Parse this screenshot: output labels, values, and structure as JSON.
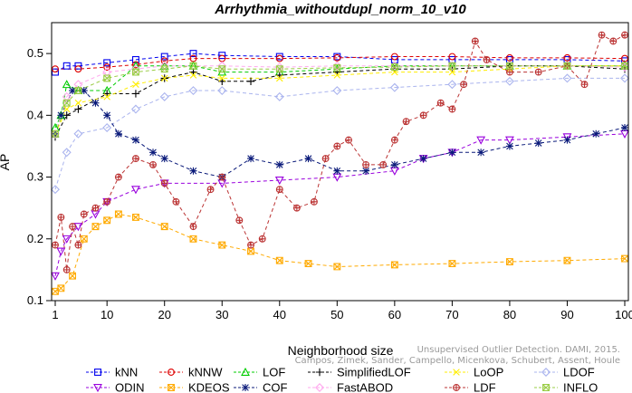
{
  "chart_data": {
    "type": "line",
    "title": "Arrhythmia_withoutdupl_norm_10_v10",
    "xlabel": "Neighborhood size",
    "ylabel": "AP",
    "xlim": [
      1,
      100
    ],
    "ylim": [
      0.1,
      0.55
    ],
    "xticks": [
      1,
      10,
      20,
      30,
      40,
      50,
      60,
      70,
      80,
      90,
      100
    ],
    "yticks": [
      0.1,
      0.2,
      0.3,
      0.4,
      0.5
    ],
    "ytick_labels": [
      "0.1",
      "0.2",
      "0.3",
      "0.4",
      "0.5"
    ],
    "grid": false,
    "legend_position": "bottom",
    "series": [
      {
        "name": "kNN",
        "color": "#0000ee",
        "marker": "square",
        "dash": "4,3",
        "points": [
          [
            1,
            0.47
          ],
          [
            3,
            0.48
          ],
          [
            5,
            0.48
          ],
          [
            10,
            0.485
          ],
          [
            15,
            0.49
          ],
          [
            20,
            0.495
          ],
          [
            25,
            0.5
          ],
          [
            30,
            0.497
          ],
          [
            40,
            0.495
          ],
          [
            50,
            0.495
          ],
          [
            60,
            0.49
          ],
          [
            70,
            0.49
          ],
          [
            80,
            0.49
          ],
          [
            90,
            0.49
          ],
          [
            100,
            0.488
          ]
        ]
      },
      {
        "name": "kNNW",
        "color": "#dd0000",
        "marker": "circle",
        "dash": "4,3",
        "points": [
          [
            1,
            0.475
          ],
          [
            5,
            0.475
          ],
          [
            10,
            0.478
          ],
          [
            15,
            0.482
          ],
          [
            20,
            0.488
          ],
          [
            25,
            0.492
          ],
          [
            30,
            0.492
          ],
          [
            40,
            0.492
          ],
          [
            50,
            0.493
          ],
          [
            60,
            0.495
          ],
          [
            70,
            0.495
          ],
          [
            80,
            0.493
          ],
          [
            90,
            0.493
          ],
          [
            100,
            0.492
          ]
        ]
      },
      {
        "name": "LOF",
        "color": "#00cc00",
        "marker": "triangle",
        "dash": "4,3",
        "points": [
          [
            1,
            0.38
          ],
          [
            2,
            0.4
          ],
          [
            3,
            0.45
          ],
          [
            5,
            0.44
          ],
          [
            10,
            0.44
          ],
          [
            15,
            0.48
          ],
          [
            20,
            0.48
          ],
          [
            25,
            0.48
          ],
          [
            30,
            0.47
          ],
          [
            40,
            0.47
          ],
          [
            50,
            0.475
          ],
          [
            60,
            0.48
          ],
          [
            70,
            0.48
          ],
          [
            80,
            0.48
          ],
          [
            90,
            0.48
          ],
          [
            100,
            0.48
          ]
        ]
      },
      {
        "name": "SimplifiedLOF",
        "color": "#000000",
        "marker": "plus",
        "dash": "4,3",
        "points": [
          [
            1,
            0.365
          ],
          [
            3,
            0.4
          ],
          [
            5,
            0.41
          ],
          [
            10,
            0.435
          ],
          [
            15,
            0.435
          ],
          [
            20,
            0.46
          ],
          [
            25,
            0.47
          ],
          [
            30,
            0.455
          ],
          [
            35,
            0.455
          ],
          [
            40,
            0.465
          ],
          [
            50,
            0.47
          ],
          [
            60,
            0.475
          ],
          [
            70,
            0.475
          ],
          [
            80,
            0.48
          ],
          [
            90,
            0.48
          ],
          [
            100,
            0.475
          ]
        ]
      },
      {
        "name": "LoOP",
        "color": "#ffee00",
        "marker": "x",
        "dash": "4,3",
        "points": [
          [
            1,
            0.37
          ],
          [
            3,
            0.41
          ],
          [
            5,
            0.42
          ],
          [
            10,
            0.43
          ],
          [
            15,
            0.45
          ],
          [
            20,
            0.46
          ],
          [
            25,
            0.465
          ],
          [
            30,
            0.46
          ],
          [
            40,
            0.46
          ],
          [
            50,
            0.465
          ],
          [
            60,
            0.47
          ],
          [
            70,
            0.47
          ],
          [
            80,
            0.475
          ],
          [
            90,
            0.48
          ],
          [
            100,
            0.48
          ]
        ]
      },
      {
        "name": "LDOF",
        "color": "#aab4ee",
        "marker": "diamond",
        "dash": "4,3",
        "points": [
          [
            1,
            0.28
          ],
          [
            3,
            0.34
          ],
          [
            5,
            0.37
          ],
          [
            10,
            0.38
          ],
          [
            15,
            0.41
          ],
          [
            20,
            0.43
          ],
          [
            25,
            0.44
          ],
          [
            30,
            0.44
          ],
          [
            40,
            0.43
          ],
          [
            50,
            0.44
          ],
          [
            60,
            0.445
          ],
          [
            70,
            0.45
          ],
          [
            80,
            0.455
          ],
          [
            90,
            0.46
          ],
          [
            100,
            0.46
          ]
        ]
      },
      {
        "name": "ODIN",
        "color": "#9900dd",
        "marker": "triangle-down",
        "dash": "4,3",
        "points": [
          [
            1,
            0.14
          ],
          [
            2,
            0.18
          ],
          [
            3,
            0.2
          ],
          [
            5,
            0.22
          ],
          [
            8,
            0.24
          ],
          [
            10,
            0.26
          ],
          [
            15,
            0.28
          ],
          [
            20,
            0.29
          ],
          [
            30,
            0.29
          ],
          [
            40,
            0.295
          ],
          [
            50,
            0.3
          ],
          [
            60,
            0.31
          ],
          [
            65,
            0.33
          ],
          [
            70,
            0.34
          ],
          [
            75,
            0.36
          ],
          [
            80,
            0.36
          ],
          [
            90,
            0.365
          ],
          [
            100,
            0.37
          ]
        ]
      },
      {
        "name": "KDEOS",
        "color": "#ffaa00",
        "marker": "square-x",
        "dash": "4,3",
        "points": [
          [
            1,
            0.115
          ],
          [
            2,
            0.12
          ],
          [
            4,
            0.14
          ],
          [
            6,
            0.2
          ],
          [
            8,
            0.22
          ],
          [
            10,
            0.23
          ],
          [
            12,
            0.24
          ],
          [
            15,
            0.235
          ],
          [
            20,
            0.22
          ],
          [
            25,
            0.2
          ],
          [
            30,
            0.19
          ],
          [
            35,
            0.18
          ],
          [
            40,
            0.165
          ],
          [
            45,
            0.16
          ],
          [
            50,
            0.155
          ],
          [
            60,
            0.158
          ],
          [
            70,
            0.16
          ],
          [
            80,
            0.163
          ],
          [
            90,
            0.165
          ],
          [
            100,
            0.168
          ]
        ]
      },
      {
        "name": "COF",
        "color": "#0a1a7a",
        "marker": "asterisk",
        "dash": "4,3",
        "points": [
          [
            1,
            0.37
          ],
          [
            2,
            0.4
          ],
          [
            4,
            0.44
          ],
          [
            6,
            0.44
          ],
          [
            8,
            0.42
          ],
          [
            10,
            0.4
          ],
          [
            12,
            0.37
          ],
          [
            15,
            0.36
          ],
          [
            18,
            0.34
          ],
          [
            20,
            0.33
          ],
          [
            25,
            0.31
          ],
          [
            30,
            0.3
          ],
          [
            35,
            0.33
          ],
          [
            40,
            0.32
          ],
          [
            45,
            0.33
          ],
          [
            50,
            0.31
          ],
          [
            55,
            0.31
          ],
          [
            60,
            0.32
          ],
          [
            65,
            0.33
          ],
          [
            70,
            0.34
          ],
          [
            75,
            0.34
          ],
          [
            80,
            0.35
          ],
          [
            85,
            0.355
          ],
          [
            90,
            0.36
          ],
          [
            95,
            0.37
          ],
          [
            100,
            0.38
          ]
        ]
      },
      {
        "name": "FastABOD",
        "color": "#ffaaee",
        "marker": "diamond",
        "dash": "4,3",
        "points": [
          [
            1,
            0.37
          ],
          [
            3,
            0.43
          ],
          [
            5,
            0.45
          ],
          [
            10,
            0.47
          ],
          [
            15,
            0.475
          ],
          [
            20,
            0.48
          ],
          [
            30,
            0.48
          ],
          [
            40,
            0.478
          ],
          [
            50,
            0.48
          ],
          [
            60,
            0.48
          ],
          [
            70,
            0.48
          ],
          [
            80,
            0.48
          ],
          [
            90,
            0.48
          ],
          [
            100,
            0.478
          ]
        ]
      },
      {
        "name": "LDF",
        "color": "#bb3333",
        "marker": "circle-plus",
        "dash": "4,3",
        "points": [
          [
            1,
            0.19
          ],
          [
            2,
            0.235
          ],
          [
            3,
            0.15
          ],
          [
            4,
            0.22
          ],
          [
            5,
            0.19
          ],
          [
            6,
            0.24
          ],
          [
            8,
            0.25
          ],
          [
            10,
            0.26
          ],
          [
            12,
            0.3
          ],
          [
            15,
            0.33
          ],
          [
            18,
            0.32
          ],
          [
            20,
            0.29
          ],
          [
            22,
            0.26
          ],
          [
            25,
            0.22
          ],
          [
            28,
            0.28
          ],
          [
            30,
            0.3
          ],
          [
            33,
            0.23
          ],
          [
            35,
            0.19
          ],
          [
            37,
            0.2
          ],
          [
            40,
            0.28
          ],
          [
            43,
            0.25
          ],
          [
            46,
            0.26
          ],
          [
            48,
            0.33
          ],
          [
            50,
            0.35
          ],
          [
            52,
            0.36
          ],
          [
            55,
            0.32
          ],
          [
            58,
            0.32
          ],
          [
            60,
            0.36
          ],
          [
            62,
            0.39
          ],
          [
            65,
            0.4
          ],
          [
            68,
            0.42
          ],
          [
            70,
            0.41
          ],
          [
            72,
            0.45
          ],
          [
            74,
            0.52
          ],
          [
            76,
            0.49
          ],
          [
            80,
            0.47
          ],
          [
            85,
            0.47
          ],
          [
            90,
            0.48
          ],
          [
            93,
            0.45
          ],
          [
            96,
            0.53
          ],
          [
            98,
            0.52
          ],
          [
            100,
            0.53
          ]
        ]
      },
      {
        "name": "INFLO",
        "color": "#99cc44",
        "marker": "square-x",
        "dash": "4,3",
        "points": [
          [
            1,
            0.37
          ],
          [
            3,
            0.42
          ],
          [
            5,
            0.44
          ],
          [
            10,
            0.46
          ],
          [
            15,
            0.47
          ],
          [
            20,
            0.475
          ],
          [
            25,
            0.48
          ],
          [
            30,
            0.475
          ],
          [
            40,
            0.475
          ],
          [
            50,
            0.477
          ],
          [
            60,
            0.478
          ],
          [
            70,
            0.48
          ],
          [
            80,
            0.48
          ],
          [
            90,
            0.48
          ],
          [
            100,
            0.48
          ]
        ]
      }
    ],
    "legend_rows": [
      [
        "kNN",
        "kNNW",
        "LOF",
        "SimplifiedLOF",
        "LoOP",
        "LDOF"
      ],
      [
        "ODIN",
        "KDEOS",
        "COF",
        "FastABOD",
        "LDF",
        "INFLO"
      ]
    ],
    "watermark": [
      "Unsupervised Outlier Detection. DAMI, 2015.",
      "Campos, Zimek, Sander, Campello, Micenkova, Schubert, Assent, Houle"
    ]
  }
}
